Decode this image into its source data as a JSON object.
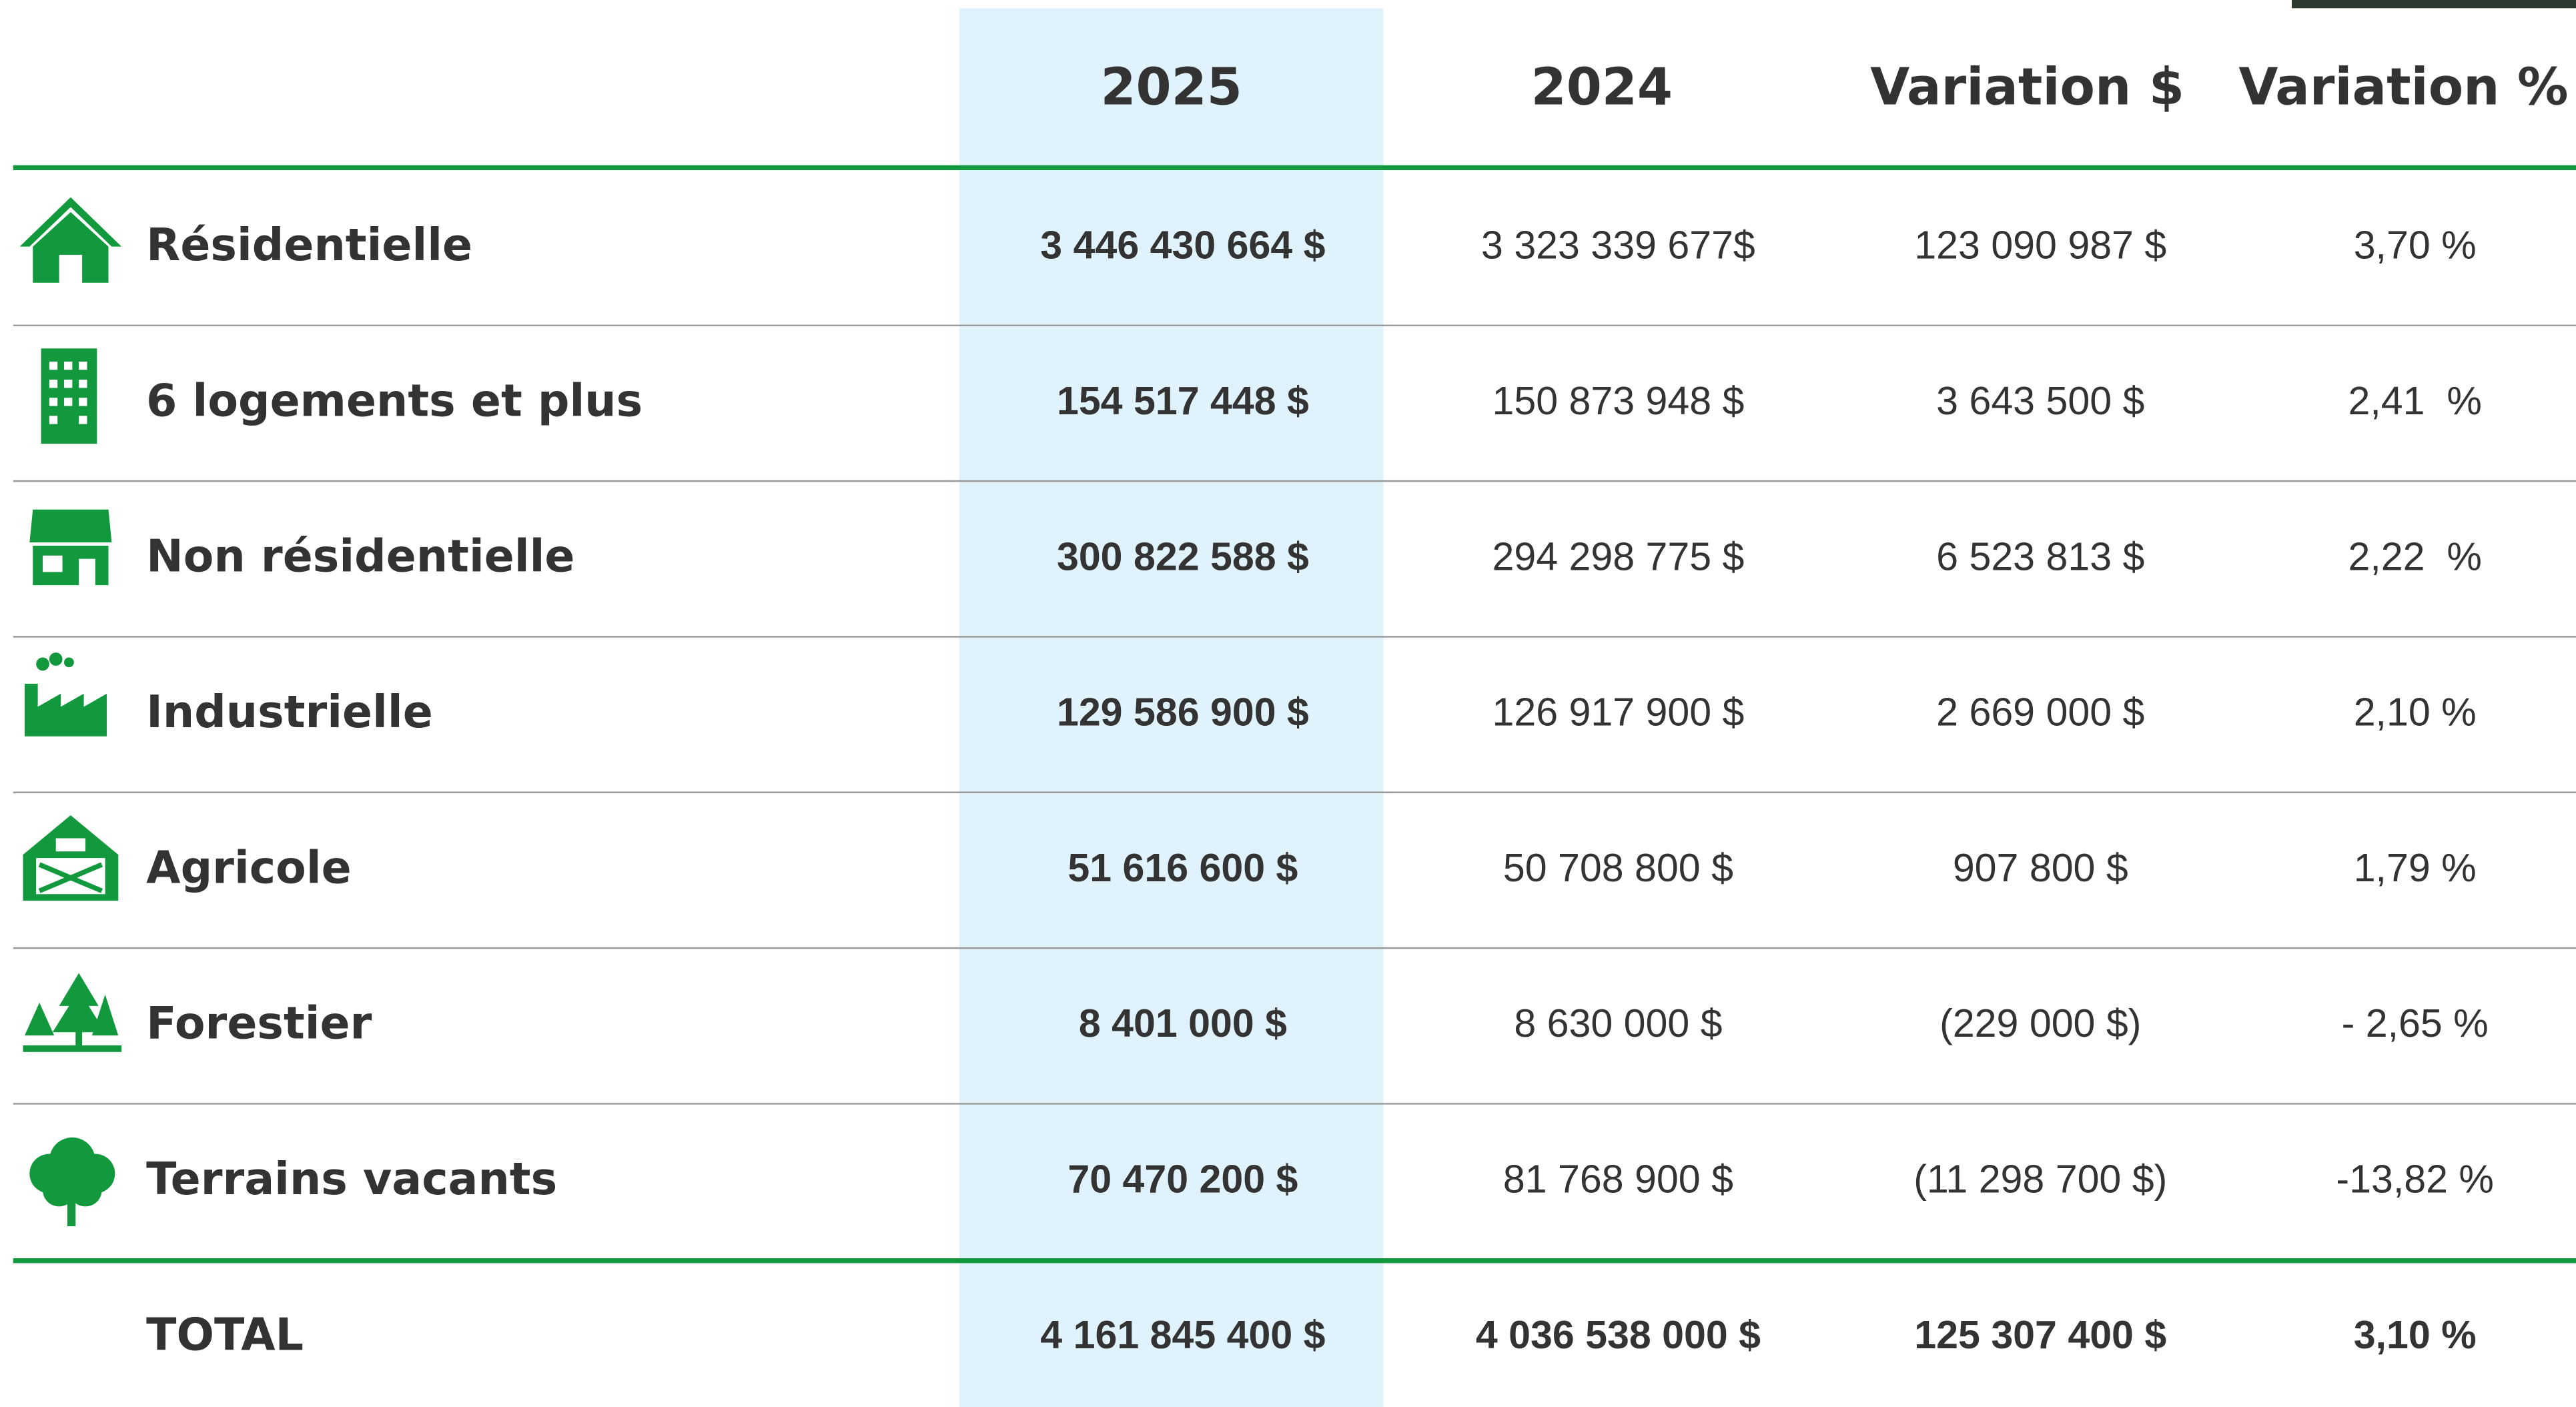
{
  "table": {
    "header": [
      "2025",
      "2024",
      "Variation $",
      "Variation %"
    ],
    "rows": [
      [
        "Résidentielle",
        "3 446 430 664 $",
        "3 323 339 677$",
        "123 090 987 $",
        "3,70 %"
      ],
      [
        "6 logements et plus",
        "154 517 448 $",
        "150 873 948 $",
        "3 643 500 $",
        "2,41  %"
      ],
      [
        "Non résidentielle",
        "300 822 588 $",
        "294 298 775 $",
        "6 523 813 $",
        "2,22  %"
      ],
      [
        "Industrielle",
        "129 586 900 $",
        "126 917 900 $",
        "2 669 000 $",
        "2,10 %"
      ],
      [
        "Agricole",
        "51 616 600 $",
        "50 708 800 $",
        "907 800 $",
        "1,79 %"
      ],
      [
        "Forestier",
        "8 401 000 $",
        "8 630 000 $",
        "(229 000 $)",
        "- 2,65 %"
      ],
      [
        "Terrains vacants",
        "70 470 200 $",
        "81 768 900 $",
        "(11 298 700 $)",
        "-13,82 %"
      ]
    ],
    "total": [
      "TOTAL",
      "4 161 845 400 $",
      "4 036 538 000 $",
      "125 307 400 $",
      "3,10 %"
    ]
  }
}
